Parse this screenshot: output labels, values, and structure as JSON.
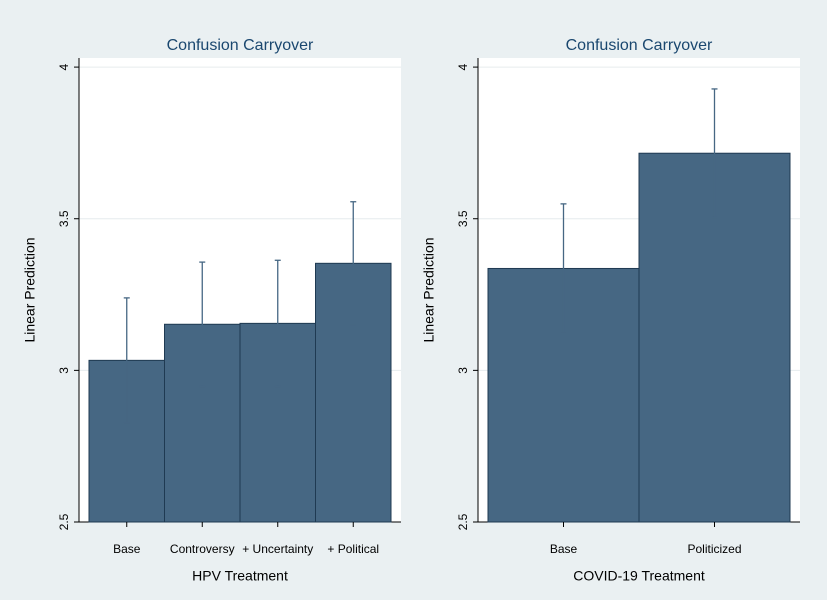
{
  "chart_data": [
    {
      "type": "bar",
      "title": "Confusion Carryover",
      "x_label": "HPV Treatment",
      "y_label": "Linear Prediction",
      "categories": [
        "Base",
        "Controversy",
        "+ Uncertainty",
        "+ Political"
      ],
      "values": [
        3.033,
        3.152,
        3.155,
        3.353
      ],
      "errors": [
        0.206,
        0.205,
        0.208,
        0.203
      ],
      "color": "#466783",
      "ylim": [
        2.5,
        4.03
      ],
      "yticks": [
        2.5,
        3,
        3.5,
        4
      ],
      "grid": true
    },
    {
      "type": "bar",
      "title": "Confusion Carryover",
      "x_label": "COVID-19 Treatment",
      "y_label": "Linear Prediction",
      "categories": [
        "Base",
        "Politicized"
      ],
      "values": [
        3.336,
        3.716
      ],
      "errors": [
        0.213,
        0.212
      ],
      "color": "#466783",
      "ylim": [
        2.5,
        4.03
      ],
      "yticks": [
        2.5,
        3,
        3.5,
        4
      ],
      "grid": true
    }
  ]
}
